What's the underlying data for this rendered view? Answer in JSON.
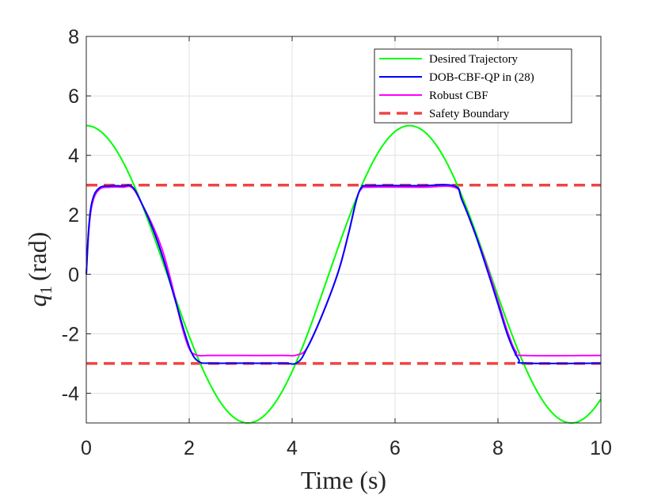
{
  "chart_data": {
    "type": "line",
    "xlabel": "Time (s)",
    "ylabel_var": "q",
    "ylabel_sub": "1",
    "ylabel_unit": "(rad)",
    "xlim": [
      0,
      10
    ],
    "ylim": [
      -5,
      8
    ],
    "xticks": [
      0,
      2,
      4,
      6,
      8,
      10
    ],
    "yticks": [
      -4,
      -2,
      0,
      2,
      4,
      6,
      8
    ],
    "grid": true,
    "legend_position": "top-right",
    "safety_bounds": [
      3,
      -3
    ],
    "series": [
      {
        "name": "Desired Trajectory",
        "color": "#00ff00",
        "dash": "solid",
        "function": "5*cos(t)",
        "points": [
          [
            0,
            5
          ],
          [
            0.5,
            4.39
          ],
          [
            1,
            2.7
          ],
          [
            1.5,
            0.35
          ],
          [
            2,
            -2.08
          ],
          [
            2.5,
            -4.01
          ],
          [
            3,
            -4.95
          ],
          [
            3.1416,
            -5
          ],
          [
            3.5,
            -4.68
          ],
          [
            4,
            -3.27
          ],
          [
            4.5,
            -1.05
          ],
          [
            5,
            1.42
          ],
          [
            5.5,
            3.54
          ],
          [
            6,
            4.8
          ],
          [
            6.2832,
            5
          ],
          [
            6.5,
            4.88
          ],
          [
            7,
            3.77
          ],
          [
            7.5,
            1.73
          ],
          [
            8,
            -0.73
          ],
          [
            8.5,
            -3.01
          ],
          [
            9,
            -4.56
          ],
          [
            9.4248,
            -5
          ],
          [
            9.5,
            -4.99
          ],
          [
            10,
            -4.2
          ]
        ]
      },
      {
        "name": "DOB-CBF-QP in (28)",
        "color": "#0000ff",
        "dash": "solid",
        "points": [
          [
            0,
            0
          ],
          [
            0.05,
            1.6
          ],
          [
            0.12,
            2.5
          ],
          [
            0.25,
            2.9
          ],
          [
            0.45,
            2.97
          ],
          [
            0.7,
            2.97
          ],
          [
            0.9,
            2.93
          ],
          [
            1.1,
            2.3
          ],
          [
            1.3,
            1.5
          ],
          [
            1.5,
            0.5
          ],
          [
            1.7,
            -0.7
          ],
          [
            1.9,
            -1.9
          ],
          [
            2.05,
            -2.65
          ],
          [
            2.2,
            -2.95
          ],
          [
            2.4,
            -2.99
          ],
          [
            3,
            -2.99
          ],
          [
            3.8,
            -2.99
          ],
          [
            4.1,
            -2.97
          ],
          [
            4.3,
            -2.45
          ],
          [
            4.6,
            -1.3
          ],
          [
            4.9,
            0.1
          ],
          [
            5.1,
            1.4
          ],
          [
            5.25,
            2.5
          ],
          [
            5.35,
            2.92
          ],
          [
            5.5,
            2.98
          ],
          [
            6.5,
            2.98
          ],
          [
            7.15,
            2.97
          ],
          [
            7.3,
            2.5
          ],
          [
            7.55,
            1.4
          ],
          [
            7.8,
            0.1
          ],
          [
            8.0,
            -1.0
          ],
          [
            8.2,
            -2.1
          ],
          [
            8.4,
            -2.85
          ],
          [
            8.55,
            -2.99
          ],
          [
            10,
            -2.99
          ]
        ]
      },
      {
        "name": "Robust CBF",
        "color": "#ff00ff",
        "dash": "solid",
        "points": [
          [
            0,
            0
          ],
          [
            0.05,
            1.5
          ],
          [
            0.12,
            2.4
          ],
          [
            0.25,
            2.85
          ],
          [
            0.45,
            2.93
          ],
          [
            0.7,
            2.93
          ],
          [
            0.9,
            2.9
          ],
          [
            1.1,
            2.3
          ],
          [
            1.3,
            1.6
          ],
          [
            1.5,
            0.7
          ],
          [
            1.7,
            -0.6
          ],
          [
            1.85,
            -1.7
          ],
          [
            2.0,
            -2.5
          ],
          [
            2.15,
            -2.72
          ],
          [
            2.4,
            -2.73
          ],
          [
            3,
            -2.73
          ],
          [
            3.8,
            -2.73
          ],
          [
            4.1,
            -2.71
          ],
          [
            4.3,
            -2.45
          ],
          [
            4.6,
            -1.3
          ],
          [
            4.9,
            0.1
          ],
          [
            5.1,
            1.4
          ],
          [
            5.25,
            2.5
          ],
          [
            5.35,
            2.88
          ],
          [
            5.5,
            2.93
          ],
          [
            6.5,
            2.93
          ],
          [
            7.15,
            2.93
          ],
          [
            7.3,
            2.5
          ],
          [
            7.55,
            1.4
          ],
          [
            7.8,
            0.2
          ],
          [
            8.0,
            -0.9
          ],
          [
            8.2,
            -2.0
          ],
          [
            8.35,
            -2.6
          ],
          [
            8.5,
            -2.73
          ],
          [
            10,
            -2.73
          ]
        ]
      },
      {
        "name": "Safety Boundary",
        "color": "#ef4444",
        "dash": "dashed"
      }
    ]
  }
}
